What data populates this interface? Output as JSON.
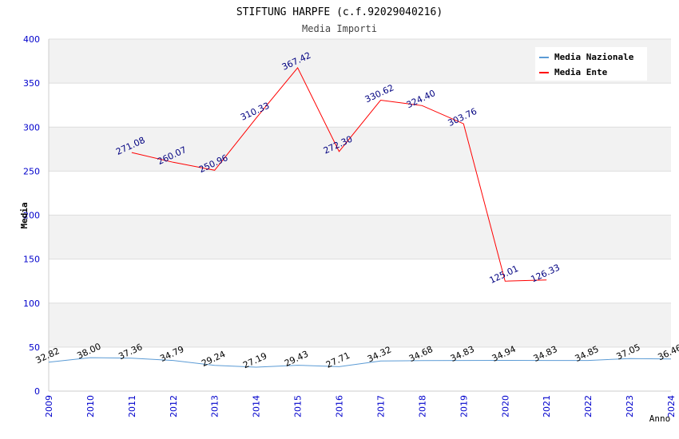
{
  "chart_data": {
    "type": "line",
    "title": "STIFTUNG HARPFE (c.f.92029040216)",
    "subtitle": "Media Importi",
    "xlabel": "Anno",
    "ylabel": "Media",
    "ylim": [
      0,
      400
    ],
    "yticks": [
      0,
      50,
      100,
      150,
      200,
      250,
      300,
      350,
      400
    ],
    "categories": [
      "2009",
      "2010",
      "2011",
      "2012",
      "2013",
      "2014",
      "2015",
      "2016",
      "2017",
      "2018",
      "2019",
      "2020",
      "2021",
      "2022",
      "2023",
      "2024"
    ],
    "legend_position": "top-right",
    "grid": true,
    "series": [
      {
        "name": "Media Nazionale",
        "color": "#5b9bd5",
        "label_color": "#000000",
        "values": [
          32.82,
          38.0,
          37.36,
          34.79,
          29.24,
          27.19,
          29.43,
          27.71,
          34.32,
          34.68,
          34.83,
          34.94,
          34.83,
          34.85,
          37.05,
          36.46
        ],
        "labels": [
          "32.82",
          "38.00",
          "37.36",
          "34.79",
          "29.24",
          "27.19",
          "29.43",
          "27.71",
          "34.32",
          "34.68",
          "34.83",
          "34.94",
          "34.83",
          "34.85",
          "37.05",
          "36.46"
        ]
      },
      {
        "name": "Media Ente",
        "color": "#ff0000",
        "label_color": "#000080",
        "values": [
          null,
          null,
          271.08,
          260.07,
          250.96,
          310.33,
          367.42,
          272.3,
          330.62,
          324.4,
          303.76,
          125.01,
          126.33,
          null,
          null,
          null
        ],
        "labels": [
          null,
          null,
          "271.08",
          "260.07",
          "250.96",
          "310.33",
          "367.42",
          "272.30",
          "330.62",
          "324.40",
          "303.76",
          "125.01",
          "126.33",
          null,
          null,
          null
        ]
      }
    ]
  },
  "colors": {
    "band": "#f2f2f2",
    "grid": "#dddddd",
    "axis_tick_text": "#0000cc"
  }
}
